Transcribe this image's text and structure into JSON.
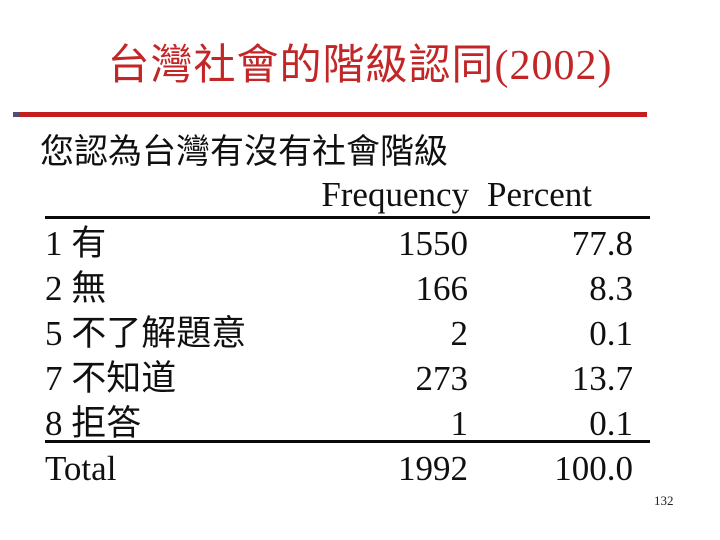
{
  "slide": {
    "title": "台灣社會的階級認同(2002)",
    "page_number": "132"
  },
  "colors": {
    "title_red": "#c22626",
    "rule_red": "#c41e1e",
    "rule_accent_dark": "#50506e",
    "text_black": "#101010"
  },
  "table": {
    "question": "您認為台灣有沒有社會階級",
    "col_headers": [
      "Frequency",
      "Percent"
    ],
    "rows": [
      {
        "label": "1 有",
        "frequency": "1550",
        "percent": "77.8"
      },
      {
        "label": "2 無",
        "frequency": "166",
        "percent": "8.3"
      },
      {
        "label": "5 不了解題意",
        "frequency": "2",
        "percent": "0.1"
      },
      {
        "label": "7 不知道",
        "frequency": "273",
        "percent": "13.7"
      },
      {
        "label": "8 拒答",
        "frequency": "1",
        "percent": "0.1"
      }
    ],
    "total": {
      "label": "Total",
      "frequency": "1992",
      "percent": "100.0"
    }
  },
  "chart_data": {
    "type": "table",
    "title": "您認為台灣有沒有社會階級",
    "columns": [
      "category",
      "Frequency",
      "Percent"
    ],
    "rows": [
      [
        "1 有",
        1550,
        77.8
      ],
      [
        "2 無",
        166,
        8.3
      ],
      [
        "5 不了解題意",
        2,
        0.1
      ],
      [
        "7 不知道",
        273,
        13.7
      ],
      [
        "8 拒答",
        1,
        0.1
      ],
      [
        "Total",
        1992,
        100.0
      ]
    ]
  }
}
